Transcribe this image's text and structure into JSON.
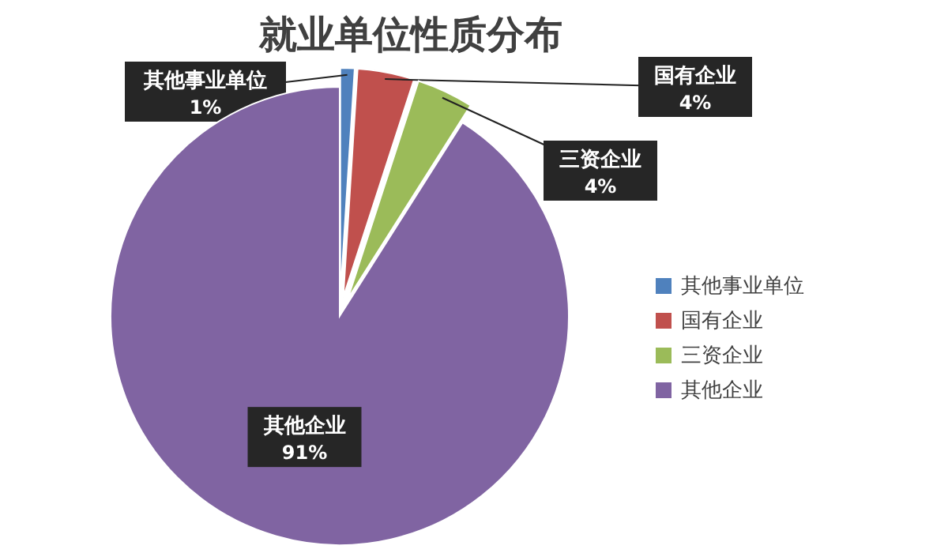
{
  "chart_data": {
    "type": "pie",
    "title": "就业单位性质分布",
    "categories": [
      "其他事业单位",
      "国有企业",
      "三资企业",
      "其他企业"
    ],
    "values": [
      1,
      4,
      4,
      91
    ],
    "colors": [
      "#4f81bd",
      "#c0504d",
      "#9bbb59",
      "#8064a2"
    ],
    "value_labels": [
      "1%",
      "4%",
      "4%",
      "91%"
    ],
    "legend": "right"
  }
}
